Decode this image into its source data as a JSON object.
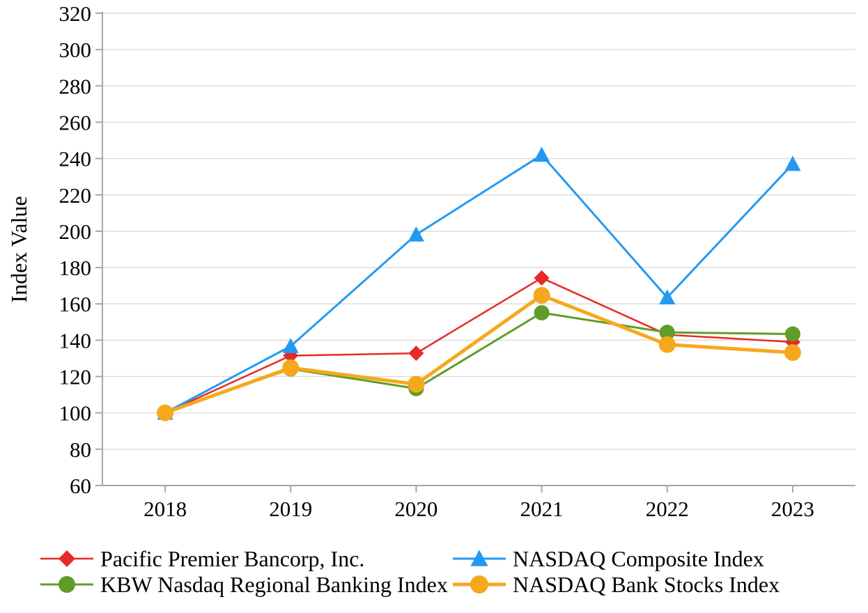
{
  "figure": {
    "background": "#ffffff"
  },
  "chart_data": {
    "type": "line",
    "title": "",
    "xlabel": "",
    "ylabel": "Index Value",
    "categories": [
      "2018",
      "2019",
      "2020",
      "2021",
      "2022",
      "2023"
    ],
    "ylim": [
      60,
      320
    ],
    "ytick_step": 20,
    "grid": "horizontal-only",
    "legend_position": "bottom-two-columns",
    "axis_color": "#a6a6a6",
    "grid_color": "#dcdcdc",
    "text_color": "#000000",
    "series": [
      {
        "name": "Pacific Premier Bancorp, Inc.",
        "color": "#e62a25",
        "marker": "diamond",
        "marker_size": 10,
        "line_width": 2.5,
        "values": [
          100,
          131.5,
          132.8,
          174.3,
          143.0,
          139.0
        ]
      },
      {
        "name": "NASDAQ Composite Index",
        "color": "#2499f2",
        "marker": "triangle",
        "marker_size": 11,
        "line_width": 3,
        "values": [
          100,
          136.7,
          198.1,
          242.0,
          163.5,
          237.0
        ]
      },
      {
        "name": "KBW Nasdaq Regional Banking Index",
        "color": "#5f9d27",
        "marker": "circle",
        "marker_size": 11,
        "line_width": 3,
        "values": [
          100,
          124.2,
          113.4,
          155.1,
          144.3,
          143.4
        ]
      },
      {
        "name": "NASDAQ Bank Stocks Index",
        "color": "#f6a81d",
        "marker": "circle",
        "marker_size": 12,
        "line_width": 5,
        "values": [
          100,
          124.8,
          115.8,
          164.7,
          137.6,
          133.2
        ]
      }
    ],
    "legend_columns": [
      [
        0,
        2
      ],
      [
        1,
        3
      ]
    ]
  }
}
